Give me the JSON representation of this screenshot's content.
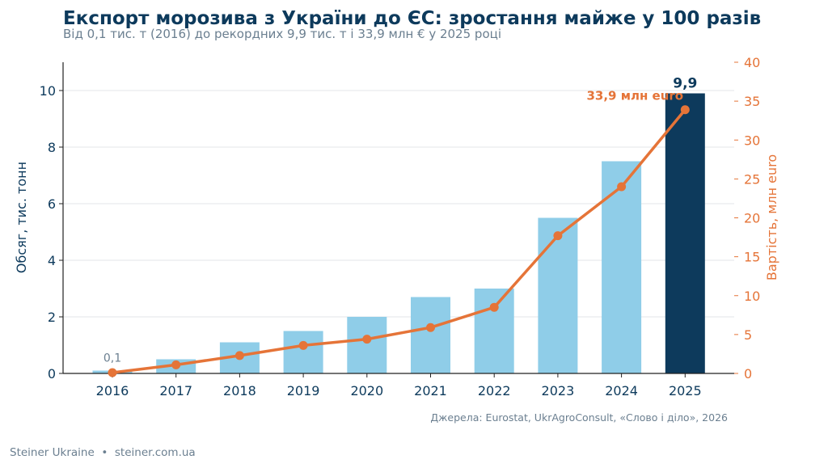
{
  "title": "Експорт морозива з України до ЄС: зростання майже у 100 разів",
  "subtitle": "Від 0,1 тис. т (2016) до рекордних 9,9 тис. т і 33,9 млн € у 2025 році",
  "source": "Джерела: Eurostat, UkrAgroConsult, «Слово і діло», 2026",
  "footer": "Steiner Ukraine  •  steiner.com.ua",
  "colors": {
    "bar": "#8fcde8",
    "bar_highlight": "#0d3a5c",
    "line": "#e57438",
    "grid": "#e3e6e9",
    "axis_left": "#0d3a5c",
    "axis_right": "#e57438"
  },
  "chart_data": {
    "type": "bar+line",
    "categories": [
      "2016",
      "2017",
      "2018",
      "2019",
      "2020",
      "2021",
      "2022",
      "2023",
      "2024",
      "2025"
    ],
    "series": [
      {
        "name": "Обсяг, тис. тонн",
        "type": "bar",
        "axis": "left",
        "values": [
          0.1,
          0.5,
          1.1,
          1.5,
          2.0,
          2.7,
          3.0,
          5.5,
          7.5,
          9.9
        ]
      },
      {
        "name": "Вартість, млн euro",
        "type": "line",
        "axis": "right",
        "values": [
          0.1,
          1.1,
          2.3,
          3.6,
          4.4,
          5.9,
          8.5,
          17.7,
          24.0,
          33.9
        ]
      }
    ],
    "ylabel_left": "Обсяг, тис. тонн",
    "ylabel_right": "Вартість, млн euro",
    "ylim_left": [
      0,
      11
    ],
    "ylim_right": [
      0,
      40
    ],
    "yticks_left": [
      0,
      2,
      4,
      6,
      8,
      10
    ],
    "yticks_right": [
      0,
      5,
      10,
      15,
      20,
      25,
      30,
      35,
      40
    ],
    "highlight_category": "2025",
    "grid": true,
    "annotations": {
      "first_bar_label": "0,1",
      "last_bar_label": "9,9",
      "last_line_label": "33,9 млн euro"
    }
  }
}
